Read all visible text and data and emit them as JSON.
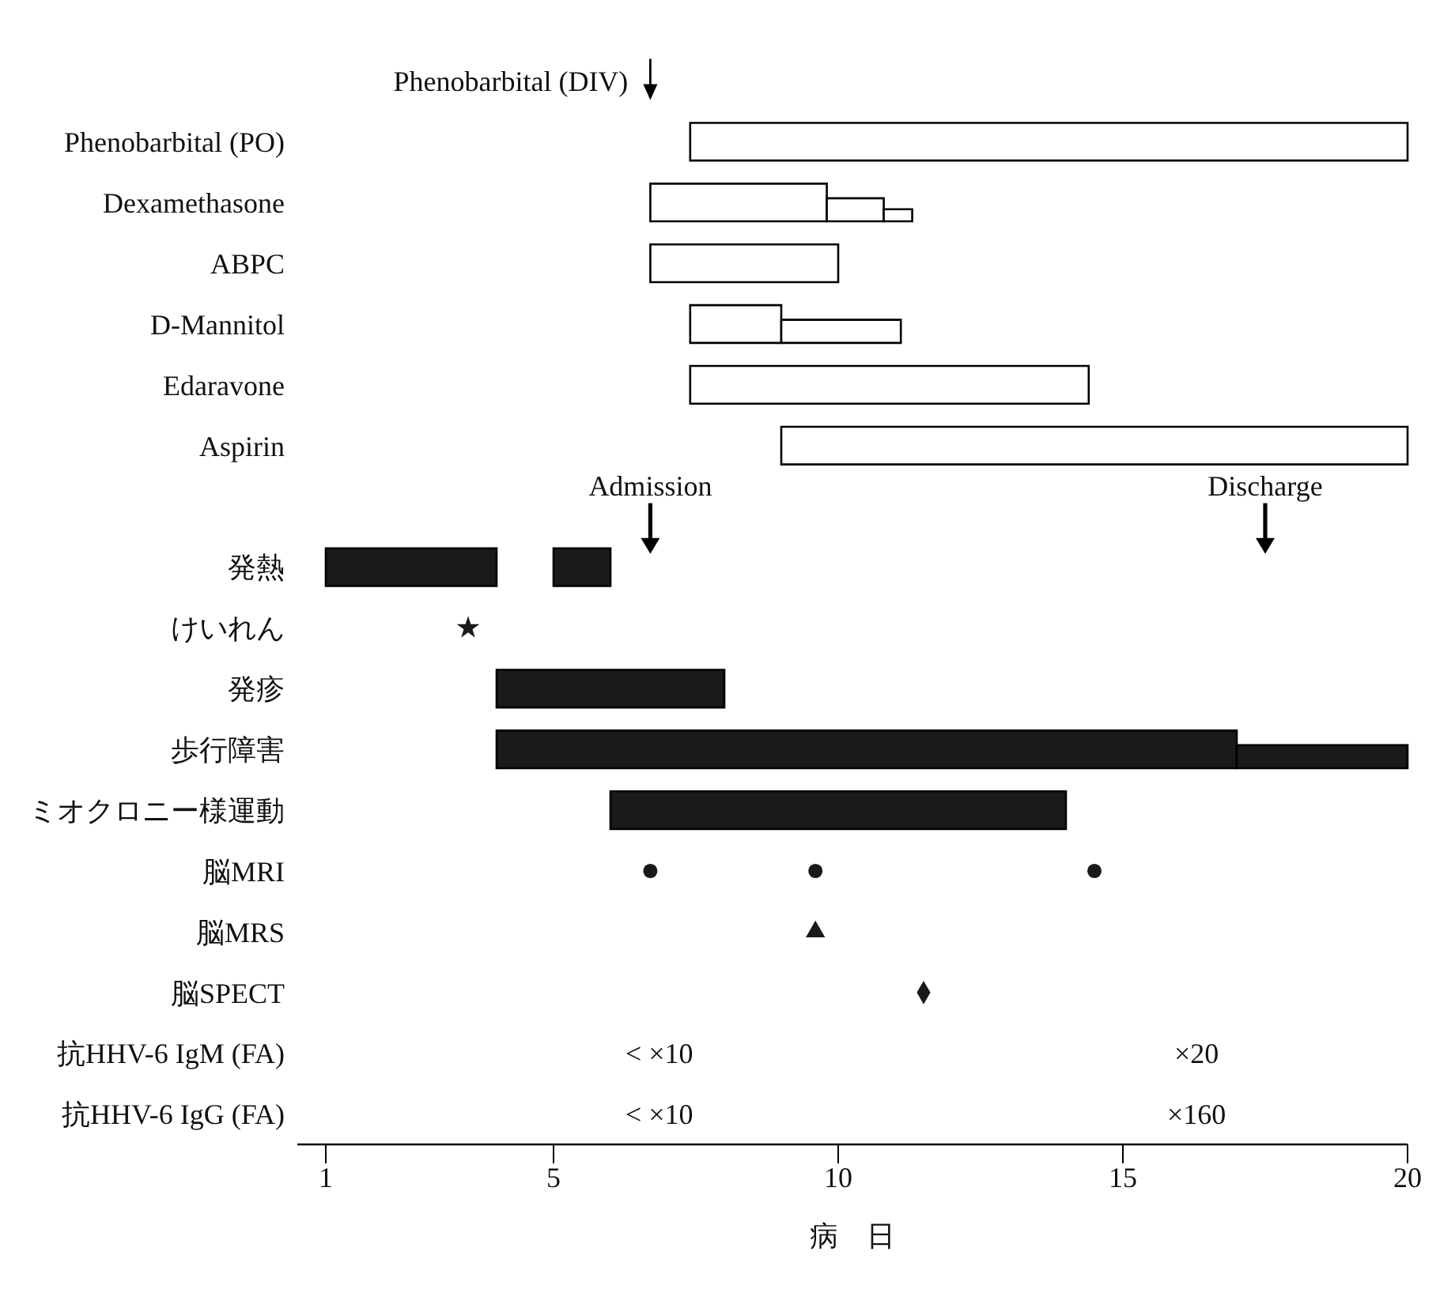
{
  "chart_data": {
    "type": "bar",
    "orientation": "horizontal",
    "xlabel": "病　日",
    "categories": [
      null,
      "Phenobarbital (PO)",
      "Dexamethasone",
      "ABPC",
      "D-Mannitol",
      "Edaravone",
      "Aspirin",
      null,
      "発熱",
      "けいれん",
      "発疹",
      "歩行障害",
      "ミオクロニー様運動",
      "脳MRI",
      "脳MRS",
      "脳SPECT",
      "抗HHV-6 IgM (FA)",
      "抗HHV-6 IgG (FA)"
    ],
    "xlim": [
      0.5,
      20
    ],
    "xticks": [
      1,
      5,
      10,
      15,
      20
    ],
    "series": [
      {
        "base": [
          null,
          7.4,
          6.7,
          6.7,
          7.4,
          7.4,
          9,
          null,
          1,
          null,
          4,
          4,
          6,
          null,
          null,
          null,
          null,
          null
        ],
        "values": [
          null,
          12.6,
          3.1,
          3.3,
          1.6,
          7,
          11,
          null,
          3,
          null,
          4,
          13,
          8,
          null,
          null,
          null,
          null,
          null
        ],
        "colors": [
          null,
          "#ffffff",
          "#ffffff",
          "#ffffff",
          "#ffffff",
          "#ffffff",
          "#ffffff",
          null,
          "#1a1a1a",
          null,
          "#1a1a1a",
          "#1a1a1a",
          "#1a1a1a",
          null,
          null,
          null,
          null,
          null
        ]
      },
      {
        "base": [
          null,
          null,
          9.8,
          null,
          9,
          null,
          null,
          null,
          null,
          null,
          null,
          17,
          null,
          null,
          null,
          null,
          null,
          null
        ],
        "values": [
          null,
          null,
          1,
          null,
          2.1,
          null,
          null,
          null,
          null,
          null,
          null,
          3,
          null,
          null,
          null,
          null,
          null,
          null
        ],
        "colors": [
          null,
          null,
          "#ffffff",
          null,
          "#ffffff",
          null,
          null,
          null,
          null,
          null,
          null,
          "#1a1a1a",
          null,
          null,
          null,
          null,
          null,
          null
        ]
      },
      {
        "base": [
          null,
          null,
          10.8,
          null,
          null,
          null,
          null,
          null,
          null,
          null,
          null,
          null,
          null,
          null,
          null,
          null,
          null,
          null
        ],
        "values": [
          null,
          null,
          0.5,
          null,
          null,
          null,
          null,
          null,
          null,
          null,
          null,
          null,
          null,
          null,
          null,
          null,
          null,
          null
        ],
        "colors": [
          null,
          null,
          "#ffffff",
          null,
          null,
          null,
          null,
          null,
          null,
          null,
          null,
          null,
          null,
          null,
          null,
          null,
          null,
          null
        ]
      },
      {
        "base": [
          null,
          null,
          null,
          null,
          null,
          null,
          null,
          null,
          5,
          null,
          null,
          null,
          null,
          null,
          null,
          null,
          null,
          null
        ],
        "values": [
          null,
          null,
          null,
          null,
          null,
          null,
          null,
          null,
          1,
          null,
          null,
          null,
          null,
          null,
          null,
          null,
          null,
          null
        ],
        "colors": [
          null,
          null,
          null,
          null,
          null,
          null,
          null,
          null,
          "#1a1a1a",
          null,
          null,
          null,
          null,
          null,
          null,
          null,
          null,
          null
        ]
      },
      {
        "type": "scatter",
        "marker": "star",
        "color": "#1a1a1a",
        "values": [
          null,
          null,
          null,
          null,
          null,
          null,
          null,
          null,
          null,
          3.5,
          null,
          null,
          null,
          null,
          null,
          null,
          null,
          null
        ]
      },
      {
        "type": "scatter",
        "marker": "circle",
        "color": "#1a1a1a",
        "values": [
          null,
          null,
          null,
          null,
          null,
          null,
          null,
          null,
          null,
          null,
          null,
          null,
          null,
          6.7,
          null,
          null,
          null,
          null
        ]
      },
      {
        "type": "scatter",
        "marker": "circle",
        "color": "#1a1a1a",
        "values": [
          null,
          null,
          null,
          null,
          null,
          null,
          null,
          null,
          null,
          null,
          null,
          null,
          null,
          9.6,
          null,
          null,
          null,
          null
        ]
      },
      {
        "type": "scatter",
        "marker": "circle",
        "color": "#1a1a1a",
        "values": [
          null,
          null,
          null,
          null,
          null,
          null,
          null,
          null,
          null,
          null,
          null,
          null,
          null,
          14.5,
          null,
          null,
          null,
          null
        ]
      },
      {
        "type": "scatter",
        "marker": "triangle",
        "color": "#1a1a1a",
        "values": [
          null,
          null,
          null,
          null,
          null,
          null,
          null,
          null,
          null,
          null,
          null,
          null,
          null,
          null,
          9.6,
          null,
          null,
          null
        ]
      },
      {
        "type": "scatter",
        "marker": "diamond",
        "color": "#1a1a1a",
        "values": [
          null,
          null,
          null,
          null,
          null,
          null,
          null,
          null,
          null,
          null,
          null,
          null,
          null,
          null,
          null,
          11.5,
          null,
          null
        ]
      }
    ],
    "annotations": [
      "< ×10",
      "×20",
      "< ×10",
      "×160"
    ],
    "ref_lines": [
      {
        "axis": "x",
        "value": 6.7,
        "label": "Phenobarbital (DIV)"
      },
      {
        "axis": "x",
        "value": 6.7,
        "label": "Admission"
      },
      {
        "axis": "x",
        "value": 17.5,
        "label": "Discharge"
      }
    ]
  }
}
